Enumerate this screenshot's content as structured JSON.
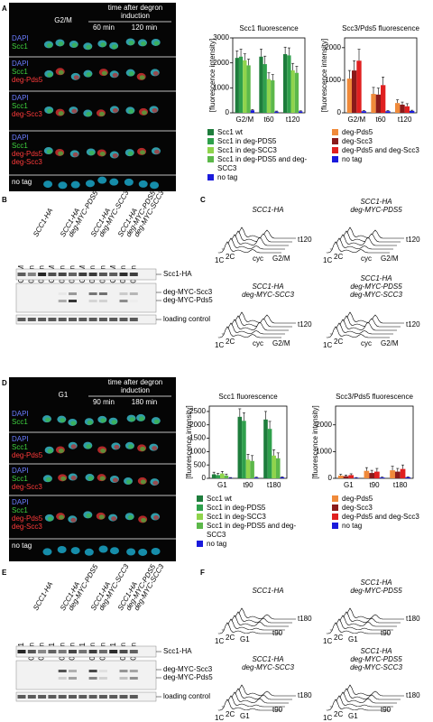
{
  "A": {
    "letter": "A",
    "header": {
      "first": "G2/M",
      "time": [
        "time after degron",
        "induction"
      ],
      "cols": [
        "60 min",
        "120 min"
      ]
    },
    "rows": [
      [
        {
          "text": "DAPI",
          "color": "#6a7cff"
        },
        {
          "text": "Scc1",
          "color": "#3fd23f"
        }
      ],
      [
        {
          "text": "DAPI",
          "color": "#6a7cff"
        },
        {
          "text": "Scc1",
          "color": "#3fd23f"
        },
        {
          "text": "deg-Pds5",
          "color": "#ff3a3a"
        }
      ],
      [
        {
          "text": "DAPI",
          "color": "#6a7cff"
        },
        {
          "text": "Scc1",
          "color": "#3fd23f"
        },
        {
          "text": "deg-Scc3",
          "color": "#ff3a3a"
        }
      ],
      [
        {
          "text": "DAPI",
          "color": "#6a7cff"
        },
        {
          "text": "Scc1",
          "color": "#3fd23f"
        },
        {
          "text": "deg-Pds5",
          "color": "#ff3a3a"
        },
        {
          "text": "deg-Scc3",
          "color": "#ff3a3a"
        }
      ],
      [
        {
          "text": "no tag",
          "color": "#ffffff"
        }
      ]
    ]
  },
  "B": {
    "letter": "B",
    "strains": [
      [
        "SCC1-HA"
      ],
      [
        "SCC1-HA",
        "deg-MYC-PDS5"
      ],
      [
        "SCC1-HA",
        "deg-MYC-SCC3"
      ],
      [
        "SCC1-HA",
        "deg-MYC-PDS5",
        "deg-MYC-SCC3"
      ]
    ],
    "lanes": [
      "G2/M",
      "60 min",
      "120 min"
    ],
    "bands": [
      "Scc1-HA",
      "deg-MYC-Scc3",
      "deg-MYC-Pds5",
      "loading control"
    ]
  },
  "C": {
    "letter": "C",
    "strains": [
      [
        "SCC1-HA"
      ],
      [
        "SCC1-HA",
        "deg-MYC-PDS5"
      ],
      [
        "SCC1-HA",
        "deg-MYC-SCC3"
      ],
      [
        "SCC1-HA",
        "deg-MYC-PDS5",
        "deg-MYC-SCC3"
      ]
    ],
    "axis_labels": [
      "1C",
      "2C",
      "cyc",
      "G2/M"
    ],
    "times": [
      "t120"
    ]
  },
  "D": {
    "letter": "D",
    "header": {
      "first": "G1",
      "time": [
        "time after degron",
        "induction"
      ],
      "cols": [
        "90 min",
        "180 min"
      ]
    },
    "rows": [
      [
        {
          "text": "DAPI",
          "color": "#6a7cff"
        },
        {
          "text": "Scc1",
          "color": "#3fd23f"
        }
      ],
      [
        {
          "text": "DAPI",
          "color": "#6a7cff"
        },
        {
          "text": "Scc1",
          "color": "#3fd23f"
        },
        {
          "text": "deg-Pds5",
          "color": "#ff3a3a"
        }
      ],
      [
        {
          "text": "DAPI",
          "color": "#6a7cff"
        },
        {
          "text": "Scc1",
          "color": "#3fd23f"
        },
        {
          "text": "deg-Scc3",
          "color": "#ff3a3a"
        }
      ],
      [
        {
          "text": "DAPI",
          "color": "#6a7cff"
        },
        {
          "text": "Scc1",
          "color": "#3fd23f"
        },
        {
          "text": "deg-Pds5",
          "color": "#ff3a3a"
        },
        {
          "text": "deg-Scc3",
          "color": "#ff3a3a"
        }
      ],
      [
        {
          "text": "no tag",
          "color": "#ffffff"
        }
      ]
    ]
  },
  "E": {
    "letter": "E",
    "strains": [
      [
        "SCC1-HA"
      ],
      [
        "SCC1-HA",
        "deg-MYC-PDS5"
      ],
      [
        "SCC1-HA",
        "deg-MYC-SCC3"
      ],
      [
        "SCC1-HA",
        "deg-MYC-PDS5",
        "deg-MYC-SCC3"
      ]
    ],
    "lanes": [
      "G1",
      "90 min",
      "180 min"
    ],
    "bands": [
      "Scc1-HA",
      "deg-MYC-Scc3",
      "deg-MYC-Pds5",
      "loading control"
    ]
  },
  "F": {
    "letter": "F",
    "strains": [
      [
        "SCC1-HA"
      ],
      [
        "SCC1-HA",
        "deg-MYC-PDS5"
      ],
      [
        "SCC1-HA",
        "deg-MYC-SCC3"
      ],
      [
        "SCC1-HA",
        "deg-MYC-PDS5",
        "deg-MYC-SCC3"
      ]
    ],
    "axis_labels": [
      "1C",
      "2C",
      "G1"
    ],
    "times": [
      "t90",
      "t180"
    ]
  },
  "chart_data": [
    {
      "type": "bar",
      "title": "Scc1 fluorescence",
      "ylabel": "[fluorescence intensity]",
      "categories": [
        "G2/M",
        "t60",
        "t120"
      ],
      "ylim": [
        0,
        3000
      ],
      "yticks": [
        0,
        1000,
        2000,
        3000
      ],
      "series": [
        {
          "name": "Scc1 wt",
          "color": "#1e7d3c",
          "values": [
            2200,
            2250,
            2350
          ],
          "errors": [
            280,
            300,
            280
          ]
        },
        {
          "name": "Scc1 in deg-PDS5",
          "color": "#2fa04c",
          "values": [
            2250,
            1950,
            2300
          ],
          "errors": [
            300,
            320,
            300
          ]
        },
        {
          "name": "Scc1 in deg-SCC3",
          "color": "#8fd44c",
          "values": [
            2100,
            1350,
            1700
          ],
          "errors": [
            260,
            250,
            280
          ]
        },
        {
          "name": "Scc1 in deg-PDS5 and deg-SCC3",
          "color": "#5cb84a",
          "values": [
            1900,
            1300,
            1600
          ],
          "errors": [
            250,
            230,
            260
          ]
        },
        {
          "name": "no tag",
          "color": "#1a1adc",
          "values": [
            100,
            50,
            60
          ],
          "errors": [
            30,
            20,
            20
          ]
        }
      ]
    },
    {
      "type": "bar",
      "title": "Scc3/Pds5 fluorescence",
      "ylabel": "[fluorescence intensity]",
      "categories": [
        "G2/M",
        "t60",
        "t120"
      ],
      "ylim": [
        0,
        2300
      ],
      "yticks": [
        0,
        1000,
        2000
      ],
      "series": [
        {
          "name": "deg-Pds5",
          "color": "#f08a3a",
          "values": [
            1050,
            580,
            300
          ],
          "errors": [
            250,
            200,
            100
          ]
        },
        {
          "name": "deg-Scc3",
          "color": "#8a1a1a",
          "values": [
            1300,
            560,
            250
          ],
          "errors": [
            300,
            200,
            80
          ]
        },
        {
          "name": "deg-Pds5 and deg-Scc3",
          "color": "#e02020",
          "values": [
            1600,
            850,
            200
          ],
          "errors": [
            350,
            250,
            80
          ]
        },
        {
          "name": "no tag",
          "color": "#1a1adc",
          "values": [
            50,
            50,
            60
          ],
          "errors": [
            20,
            20,
            20
          ]
        }
      ]
    },
    {
      "type": "bar",
      "title": "Scc1 fluorescence",
      "ylabel": "[fluorescence intensity]",
      "categories": [
        "G1",
        "t90",
        "t180"
      ],
      "ylim": [
        0,
        2700
      ],
      "yticks": [
        0,
        500,
        1000,
        1500,
        2000,
        2500
      ],
      "series": [
        {
          "name": "Scc1 wt",
          "color": "#1e7d3c",
          "values": [
            150,
            2300,
            2200
          ],
          "errors": [
            80,
            300,
            300
          ]
        },
        {
          "name": "Scc1 in deg-PDS5",
          "color": "#2fa04c",
          "values": [
            120,
            2150,
            1850
          ],
          "errors": [
            70,
            300,
            280
          ]
        },
        {
          "name": "Scc1 in deg-SCC3",
          "color": "#8fd44c",
          "values": [
            180,
            700,
            850
          ],
          "errors": [
            80,
            200,
            220
          ]
        },
        {
          "name": "Scc1 in deg-PDS5 and deg-SCC3",
          "color": "#5cb84a",
          "values": [
            100,
            650,
            750
          ],
          "errors": [
            60,
            200,
            200
          ]
        },
        {
          "name": "no tag",
          "color": "#1a1adc",
          "values": [
            20,
            30,
            40
          ],
          "errors": [
            10,
            15,
            15
          ]
        }
      ]
    },
    {
      "type": "bar",
      "title": "Scc3/Pds5 fluorescence",
      "ylabel": "[fluorescence intensity]",
      "categories": [
        "G1",
        "t90",
        "t180"
      ],
      "ylim": [
        0,
        2700
      ],
      "yticks": [
        0,
        1000,
        2000
      ],
      "series": [
        {
          "name": "deg-Pds5",
          "color": "#f08a3a",
          "values": [
            100,
            280,
            300
          ],
          "errors": [
            50,
            120,
            150
          ]
        },
        {
          "name": "deg-Scc3",
          "color": "#8a1a1a",
          "values": [
            80,
            200,
            250
          ],
          "errors": [
            40,
            100,
            120
          ]
        },
        {
          "name": "deg-Pds5 and deg-Scc3",
          "color": "#e02020",
          "values": [
            120,
            250,
            350
          ],
          "errors": [
            50,
            120,
            150
          ]
        },
        {
          "name": "no tag",
          "color": "#1a1adc",
          "values": [
            20,
            30,
            40
          ],
          "errors": [
            10,
            15,
            15
          ]
        }
      ]
    }
  ]
}
